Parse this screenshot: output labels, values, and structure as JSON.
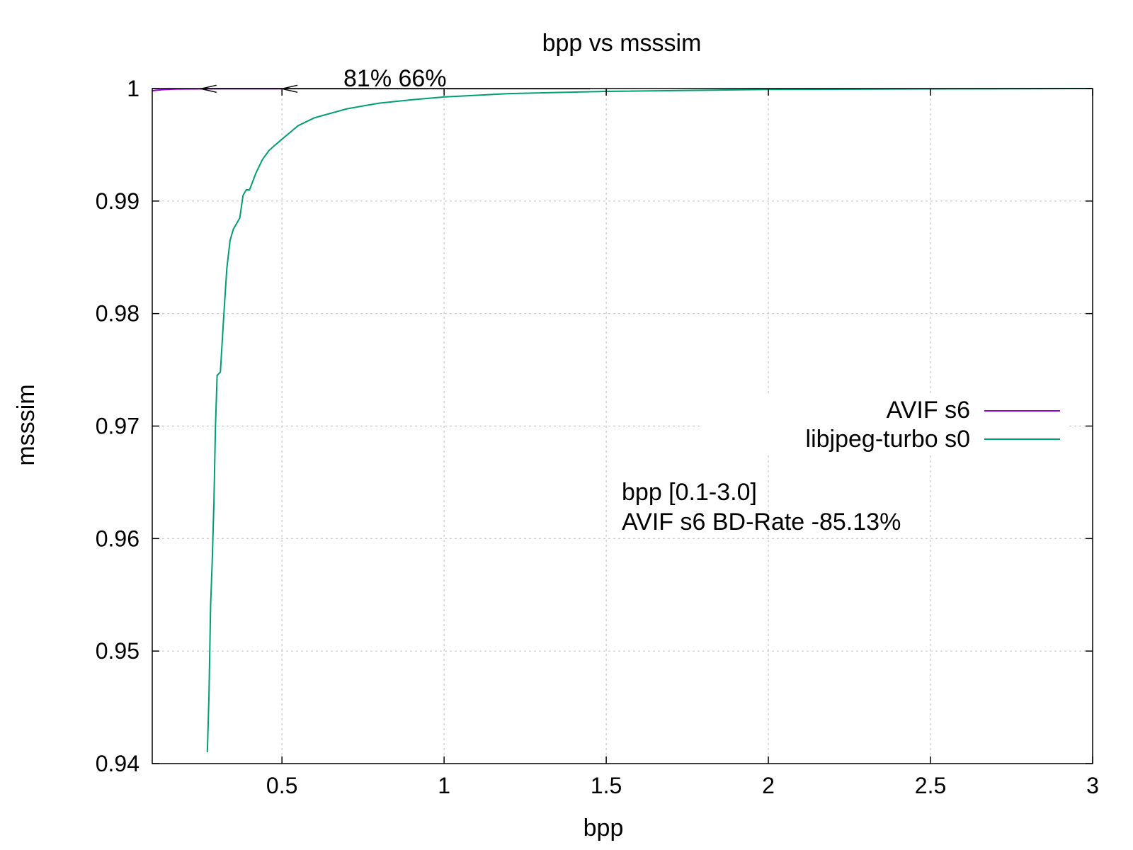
{
  "chart_data": {
    "type": "line",
    "title": "bpp vs msssim",
    "xlabel": "bpp",
    "ylabel": "msssim",
    "xlim": [
      0.1,
      3.0
    ],
    "ylim": [
      0.94,
      1.0
    ],
    "xticks": [
      0.5,
      1,
      1.5,
      2,
      2.5,
      3
    ],
    "xtick_labels": [
      "0.5",
      "1",
      "1.5",
      "2",
      "2.5",
      "3"
    ],
    "yticks": [
      0.94,
      0.95,
      0.96,
      0.97,
      0.98,
      0.99,
      1.0
    ],
    "ytick_labels": [
      "0.94",
      "0.95",
      "0.96",
      "0.97",
      "0.98",
      "0.99",
      "1"
    ],
    "grid": true,
    "legend_position": "right-middle",
    "series": [
      {
        "name": "AVIF s6",
        "color": "#9400d3",
        "x": [
          0.1,
          0.11,
          0.12,
          0.13,
          0.15,
          0.17,
          0.2,
          0.24,
          0.3,
          0.4,
          0.5
        ],
        "y": [
          0.9998,
          0.99984,
          0.99987,
          0.9999,
          0.99993,
          0.99995,
          0.99996,
          0.99997,
          0.99998,
          0.99998,
          0.99998
        ]
      },
      {
        "name": "libjpeg-turbo s0",
        "color": "#009e73",
        "x": [
          0.27,
          0.275,
          0.28,
          0.285,
          0.29,
          0.295,
          0.3,
          0.31,
          0.32,
          0.33,
          0.34,
          0.35,
          0.36,
          0.37,
          0.38,
          0.39,
          0.4,
          0.42,
          0.44,
          0.46,
          0.48,
          0.5,
          0.55,
          0.6,
          0.7,
          0.8,
          0.9,
          1.0,
          1.2,
          1.5,
          2.0,
          2.5,
          3.0
        ],
        "y": [
          0.941,
          0.946,
          0.954,
          0.958,
          0.963,
          0.97,
          0.9745,
          0.9748,
          0.9795,
          0.984,
          0.9865,
          0.9875,
          0.988,
          0.9885,
          0.9905,
          0.991,
          0.991,
          0.9925,
          0.9937,
          0.9945,
          0.995,
          0.9955,
          0.9967,
          0.9974,
          0.9982,
          0.9987,
          0.999,
          0.99925,
          0.99955,
          0.99975,
          0.99992,
          0.99997,
          1.0
        ]
      }
    ],
    "annotations": {
      "percent_label": "81% 66%",
      "arrows": [
        {
          "from_x": 1.45,
          "to_x": 0.5,
          "y": 0.99998,
          "color": "#000000"
        },
        {
          "from_x": 0.5,
          "to_x": 0.25,
          "y": 0.99998,
          "color": "#000000"
        }
      ]
    },
    "notes": {
      "color": "#00ff00",
      "lines": [
        "bpp [0.1-3.0]",
        "AVIF s6 BD-Rate -85.13%"
      ]
    }
  }
}
